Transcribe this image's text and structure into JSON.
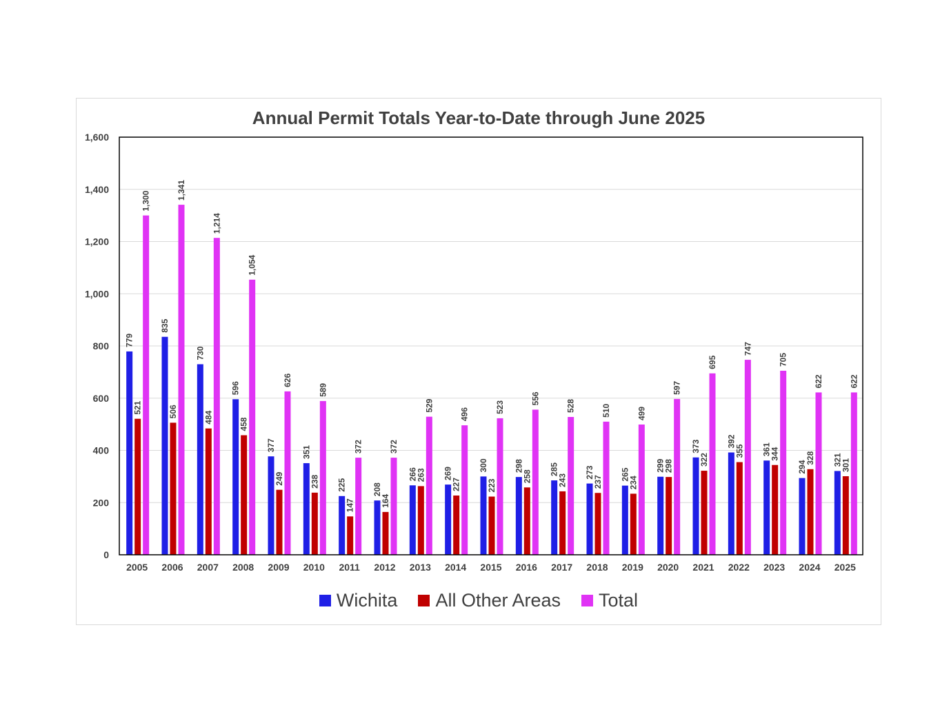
{
  "chart_data": {
    "type": "bar",
    "title": "Annual Permit Totals Year-to-Date through June 2025",
    "xlabel": "",
    "ylabel": "",
    "ylim": [
      0,
      1600
    ],
    "yticks": [
      0,
      200,
      400,
      600,
      800,
      1000,
      1200,
      1400,
      1600
    ],
    "ytick_labels": [
      "0",
      "200",
      "400",
      "600",
      "800",
      "1,000",
      "1,200",
      "1,400",
      "1,600"
    ],
    "grid": true,
    "legend_position": "bottom",
    "categories": [
      "2005",
      "2006",
      "2007",
      "2008",
      "2009",
      "2010",
      "2011",
      "2012",
      "2013",
      "2014",
      "2015",
      "2016",
      "2017",
      "2018",
      "2019",
      "2020",
      "2021",
      "2022",
      "2023",
      "2024",
      "2025"
    ],
    "series": [
      {
        "name": "Wichita",
        "color": "#1f1fe6",
        "values": [
          779,
          835,
          730,
          596,
          377,
          351,
          225,
          208,
          266,
          269,
          300,
          298,
          285,
          273,
          265,
          299,
          373,
          392,
          361,
          294,
          321
        ]
      },
      {
        "name": "All Other Areas",
        "color": "#c00000",
        "values": [
          521,
          506,
          484,
          458,
          249,
          238,
          147,
          164,
          263,
          227,
          223,
          258,
          243,
          237,
          234,
          298,
          322,
          355,
          344,
          328,
          301
        ]
      },
      {
        "name": "Total",
        "color": "#e033f5",
        "values": [
          1300,
          1341,
          1214,
          1054,
          626,
          589,
          372,
          372,
          529,
          496,
          523,
          556,
          528,
          510,
          499,
          597,
          695,
          747,
          705,
          622,
          622
        ]
      }
    ]
  }
}
